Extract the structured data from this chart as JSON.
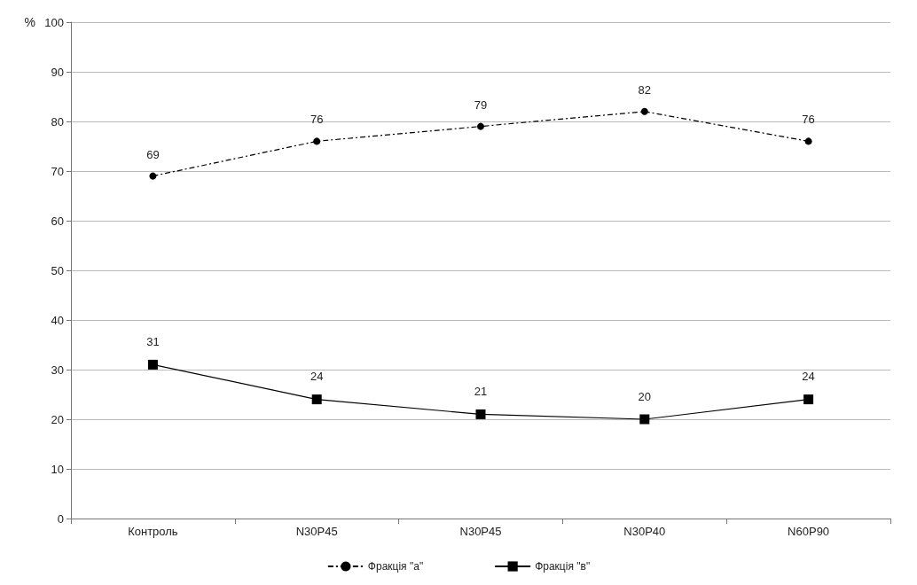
{
  "chart_data": {
    "type": "line",
    "ylabel": "%",
    "categories": [
      "Контроль",
      "N30P45",
      "N30P45",
      "N30P40",
      "N60P90"
    ],
    "series": [
      {
        "name": "Фракція \"а\"",
        "color": "#000000",
        "values": [
          69,
          76,
          79,
          82,
          76
        ],
        "marker": "circle",
        "line_style": "dashed"
      },
      {
        "name": "Фракція \"в\"",
        "color": "#000000",
        "values": [
          31,
          24,
          21,
          20,
          24
        ],
        "marker": "square",
        "line_style": "solid"
      }
    ],
    "ylim": [
      0,
      100
    ],
    "yticks": [
      0,
      10,
      20,
      30,
      40,
      50,
      60,
      70,
      80,
      90,
      100
    ],
    "grid": "y",
    "legend": "bottom",
    "data_labels": true
  }
}
